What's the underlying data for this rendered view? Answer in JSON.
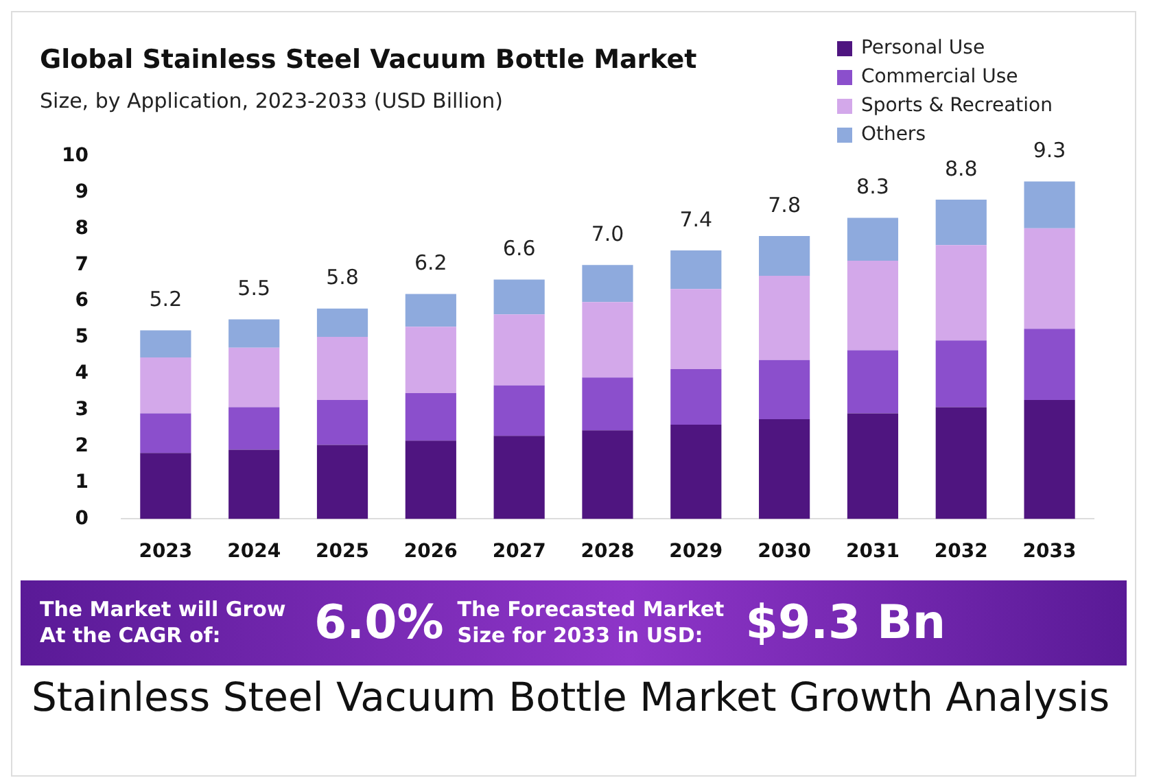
{
  "chart_data": {
    "type": "bar",
    "title": "Global Stainless Steel Vacuum Bottle Market",
    "subtitle": "Size, by Application, 2023-2033 (USD Billion)",
    "categories": [
      "2023",
      "2024",
      "2025",
      "2026",
      "2027",
      "2028",
      "2029",
      "2030",
      "2031",
      "2032",
      "2033"
    ],
    "stacked": true,
    "series": [
      {
        "name": "Personal Use",
        "color": "#4f1580",
        "values": [
          1.82,
          1.91,
          2.04,
          2.16,
          2.29,
          2.44,
          2.6,
          2.75,
          2.91,
          3.08,
          3.28
        ]
      },
      {
        "name": "Commercial Use",
        "color": "#8b4fcc",
        "values": [
          1.09,
          1.17,
          1.24,
          1.31,
          1.39,
          1.46,
          1.53,
          1.63,
          1.74,
          1.84,
          1.96
        ]
      },
      {
        "name": "Sports & Recreation",
        "color": "#d3a8ea",
        "values": [
          1.54,
          1.64,
          1.74,
          1.83,
          1.96,
          2.08,
          2.21,
          2.32,
          2.47,
          2.63,
          2.77
        ]
      },
      {
        "name": "Others",
        "color": "#8eaadd",
        "values": [
          0.75,
          0.78,
          0.78,
          0.9,
          0.96,
          1.02,
          1.06,
          1.1,
          1.18,
          1.25,
          1.29
        ]
      }
    ],
    "totals": [
      "5.2",
      "5.5",
      "5.8",
      "6.2",
      "6.6",
      "7.0",
      "7.4",
      "7.8",
      "8.3",
      "8.8",
      "9.3"
    ],
    "ylim": [
      0,
      10
    ],
    "yticks": [
      0,
      1,
      2,
      3,
      4,
      5,
      6,
      7,
      8,
      9,
      10
    ],
    "grid": false,
    "legend": "top right",
    "annotations": [
      "The Market will Grow At the CAGR of:",
      "6.0%",
      "The Forecasted Market Size for 2033 in USD:",
      "$9.3 Bn",
      "Stainless Steel Vacuum Bottle Market Growth Analysis"
    ]
  }
}
